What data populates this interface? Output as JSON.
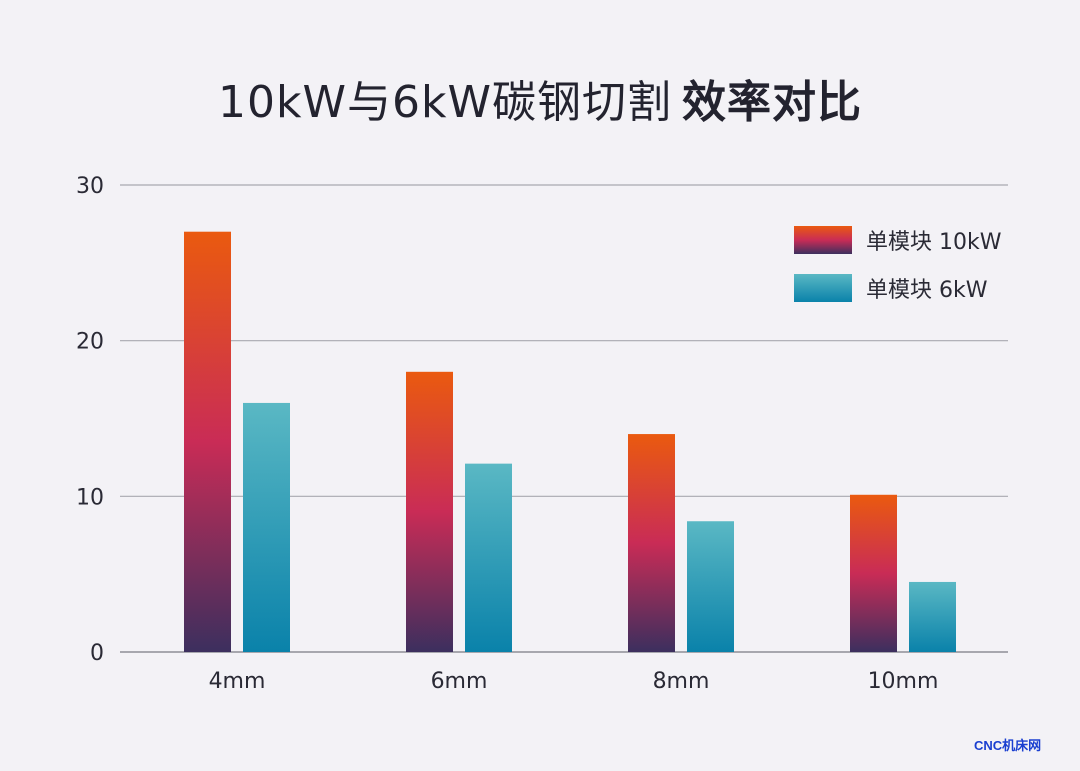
{
  "title_regular": "10kW与6kW碳钢切割",
  "title_bold": "效率对比",
  "watermark": "CNC机床网",
  "chart_data": {
    "type": "bar",
    "title": "10kW与6kW碳钢切割 效率对比",
    "xlabel": "",
    "ylabel": "",
    "categories": [
      "4mm",
      "6mm",
      "8mm",
      "10mm"
    ],
    "series": [
      {
        "name": "单模块 10kW",
        "values": [
          27,
          18,
          14,
          10.1
        ],
        "gradient": [
          "#ea5a0f",
          "#c92c56",
          "#3c2f5e"
        ]
      },
      {
        "name": "单模块 6kW",
        "values": [
          16,
          12.1,
          8.4,
          4.5
        ],
        "gradient": [
          "#5ab8c4",
          "#0a82aa"
        ]
      }
    ],
    "yticks": [
      0,
      10,
      20,
      30
    ],
    "ylim": [
      0,
      30
    ],
    "grid": true,
    "legend_position": "top-right"
  }
}
